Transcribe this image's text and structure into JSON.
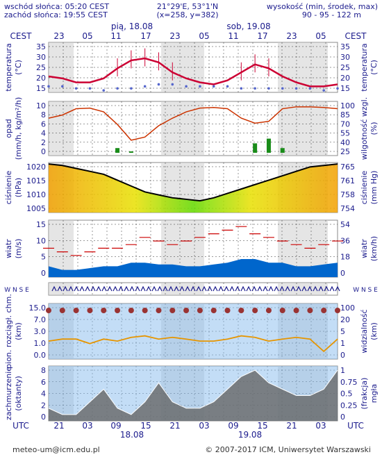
{
  "header": {
    "sunrise": "wschód słońca: 05:20 CEST",
    "sunset": "zachód słońca: 19:55 CEST",
    "coords": "21°29'E, 53°1'N",
    "grid": "(x=258, y=382)",
    "height_label": "wysokość (min, środek, max)",
    "height_values": "90 - 95 - 122 m"
  },
  "time_axis": {
    "tz_label": "CEST",
    "utc_label": "UTC",
    "top_hours": [
      "23",
      "05",
      "11",
      "17",
      "23",
      "05",
      "11",
      "17",
      "23",
      "05"
    ],
    "bottom_hours": [
      "21",
      "03",
      "09",
      "15",
      "21",
      "03",
      "09",
      "15",
      "21",
      "03"
    ],
    "top_days": [
      "pią, 18.08",
      "sob, 19.08"
    ],
    "bottom_days": [
      "18.08",
      "19.08"
    ]
  },
  "panels": [
    {
      "id": "temperature",
      "left_label": "temperatura",
      "left_unit": "(°C)",
      "right_label": "temperatura",
      "right_unit": "(°C)",
      "left_ticks": [
        "35",
        "30",
        "25",
        "20",
        "15"
      ],
      "right_ticks": [
        "35",
        "30",
        "25",
        "20",
        "15"
      ]
    },
    {
      "id": "precip",
      "left_label": "opad",
      "left_unit": "(mm/h, kg/m²/h)",
      "right_label": "wilgotność wzgl.",
      "right_unit": "(%)",
      "left_ticks": [
        "10",
        "8",
        "6",
        "4",
        "2",
        "0"
      ],
      "right_ticks": [
        "100",
        "85",
        "70",
        "55",
        "40",
        "25"
      ]
    },
    {
      "id": "pressure",
      "left_label": "ciśnienie",
      "left_unit": "(hPa)",
      "right_label": "ciśnienie",
      "right_unit": "(mm Hg)",
      "left_ticks": [
        "1020",
        "1015",
        "1010",
        "1005"
      ],
      "right_ticks": [
        "765",
        "761",
        "758",
        "754"
      ]
    },
    {
      "id": "wind",
      "left_label": "wiatr",
      "left_unit": "(m/s)",
      "right_label": "wiatr",
      "right_unit": "(km/h)",
      "left_ticks": [
        "15",
        "10",
        "5",
        "0"
      ],
      "right_ticks": [
        "54",
        "36",
        "18",
        "0"
      ]
    },
    {
      "id": "winddir",
      "left_label": "W N S E",
      "right_label": "W N S E"
    },
    {
      "id": "cloudbase",
      "left_label": "pion. rozciągł. chm.",
      "left_unit": "(km)",
      "right_label": "widzialność",
      "right_unit": "(km)",
      "left_ticks": [
        "15.0",
        "7.0",
        "3.0",
        "1.0",
        "0.0"
      ],
      "right_ticks": [
        "100",
        "20",
        "5",
        "1",
        "0"
      ]
    },
    {
      "id": "clouds",
      "left_label": "zachmurzenie",
      "left_unit": "(oktanty)",
      "right_label": "(frakcja)",
      "right_unit": "mgła",
      "left_ticks": [
        "8",
        "6",
        "4",
        "2",
        "0"
      ],
      "right_ticks": [
        "1",
        "0.75",
        "0.5",
        "0.25",
        "0"
      ]
    }
  ],
  "footer": {
    "email": "meteo-um@icm.edu.pl",
    "copyright": "© 2007-2017 ICM, Uniwersytet Warszawski"
  },
  "colors": {
    "axis_text": "#1a1a8c",
    "temp_line": "#cc0033",
    "humidity_line": "#cc3300",
    "pressure_line": "#000000",
    "wind_fill": "#0066cc",
    "visibility_line": "#e69500",
    "shade_night": "#d0d0d0"
  },
  "chart_data": {
    "type": "line",
    "hours_utc": [
      18,
      21,
      24,
      27,
      30,
      33,
      36,
      39,
      42,
      45,
      48,
      51,
      54,
      57,
      60,
      63,
      66,
      69,
      72,
      75,
      78,
      81
    ],
    "temperature": [
      20,
      19,
      17,
      17,
      19,
      24,
      28,
      29,
      27,
      22,
      19,
      17,
      16,
      18,
      22,
      26,
      24,
      20,
      17,
      15,
      15,
      16
    ],
    "dewpoint": [
      15,
      15,
      14,
      14,
      13,
      14,
      14,
      15,
      16,
      16,
      15,
      15,
      15,
      15,
      14,
      14,
      14,
      14,
      14,
      14,
      13,
      14
    ],
    "humidity_pct": [
      80,
      85,
      95,
      96,
      90,
      70,
      45,
      50,
      68,
      80,
      90,
      96,
      97,
      95,
      80,
      72,
      75,
      95,
      98,
      98,
      97,
      95
    ],
    "precipitation": [
      0,
      0,
      0,
      0,
      0,
      1,
      0.3,
      0,
      0,
      0,
      0,
      0,
      0,
      0,
      0,
      2,
      3,
      1,
      0,
      0,
      0,
      0
    ],
    "pressure_hpa": [
      1020.5,
      1020,
      1019,
      1018,
      1017,
      1015,
      1013,
      1011,
      1010,
      1009,
      1008.5,
      1008,
      1009,
      1010.5,
      1012,
      1013.5,
      1015,
      1016.5,
      1018,
      1019.5,
      1020,
      1020.5
    ],
    "wind_ms": [
      3,
      2,
      2,
      2.5,
      3,
      3,
      4,
      4,
      3.5,
      3.5,
      3,
      3,
      3.5,
      4,
      5,
      5,
      4,
      4,
      3,
      3,
      3.5,
      4
    ],
    "gust_ms": [
      8,
      7,
      6,
      7,
      8,
      8,
      9,
      11,
      10,
      9,
      10,
      11,
      12,
      13,
      14,
      12,
      11,
      10,
      9,
      8,
      9,
      10
    ],
    "cloud_cover_okta": [
      2,
      1,
      1,
      3,
      5,
      2,
      1,
      3,
      6,
      3,
      2,
      2,
      3,
      5,
      7,
      8,
      6,
      5,
      4,
      4,
      5,
      8
    ],
    "visibility_km": [
      4,
      5,
      5,
      3,
      5,
      4,
      6,
      7,
      5,
      6,
      5,
      4,
      4,
      5,
      7,
      6,
      4,
      5,
      6,
      5,
      1,
      5
    ],
    "ylim_temperature": [
      12,
      37
    ],
    "ylim_pressure": [
      1004,
      1021
    ],
    "ylim_wind": [
      0,
      15
    ]
  }
}
